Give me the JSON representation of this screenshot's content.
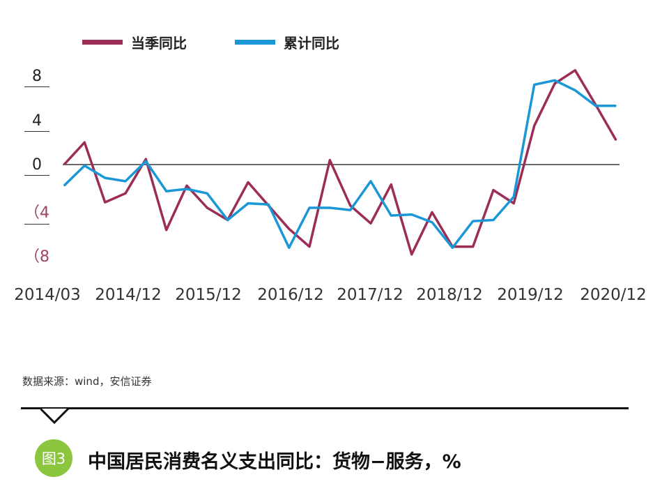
{
  "chart_data": {
    "type": "line",
    "title": "中国居民消费名义支出同比：货物−服务，%",
    "figure_number": "图3",
    "source": "数据来源：wind，安信证券",
    "legend_position": "top",
    "ylim": [
      -9,
      9.5
    ],
    "yticks": [
      {
        "value": 8,
        "label": "8"
      },
      {
        "value": 4,
        "label": "4"
      },
      {
        "value": 0,
        "label": "0"
      },
      {
        "value": -4,
        "label": "（4"
      },
      {
        "value": -8,
        "label": "（8"
      }
    ],
    "x": [
      "2014/03",
      "2014/06",
      "2014/09",
      "2014/12",
      "2015/03",
      "2015/06",
      "2015/09",
      "2015/12",
      "2016/03",
      "2016/06",
      "2016/09",
      "2016/12",
      "2017/03",
      "2017/06",
      "2017/09",
      "2017/12",
      "2018/03",
      "2018/06",
      "2018/09",
      "2018/12",
      "2019/03",
      "2019/06",
      "2019/09",
      "2019/12",
      "2020/03",
      "2020/06",
      "2020/09",
      "2020/12"
    ],
    "xtick_labels": [
      "2014/03",
      "2014/12",
      "2015/12",
      "2016/12",
      "2017/12",
      "2018/12",
      "2019/12",
      "2020/12"
    ],
    "series": [
      {
        "name": "当季同比",
        "color": "#9b2d57",
        "values": [
          0.0,
          2.0,
          -3.4,
          -2.6,
          0.5,
          -5.9,
          -1.9,
          -3.9,
          -5.0,
          -1.6,
          -3.7,
          -5.8,
          -7.4,
          0.4,
          -3.7,
          -5.3,
          -1.8,
          -8.1,
          -4.3,
          -7.4,
          -7.4,
          -2.3,
          -3.5,
          3.5,
          7.3,
          8.5,
          5.4,
          2.2
        ]
      },
      {
        "name": "累计同比",
        "color": "#1997d6",
        "values": [
          -1.9,
          -0.1,
          -1.2,
          -1.5,
          0.3,
          -2.4,
          -2.2,
          -2.6,
          -5.0,
          -3.5,
          -3.6,
          -7.5,
          -3.9,
          -3.9,
          -4.1,
          -1.5,
          -4.6,
          -4.5,
          -5.2,
          -7.5,
          -5.1,
          -5.0,
          -2.9,
          7.2,
          7.6,
          6.7,
          5.3,
          5.3
        ]
      }
    ]
  }
}
